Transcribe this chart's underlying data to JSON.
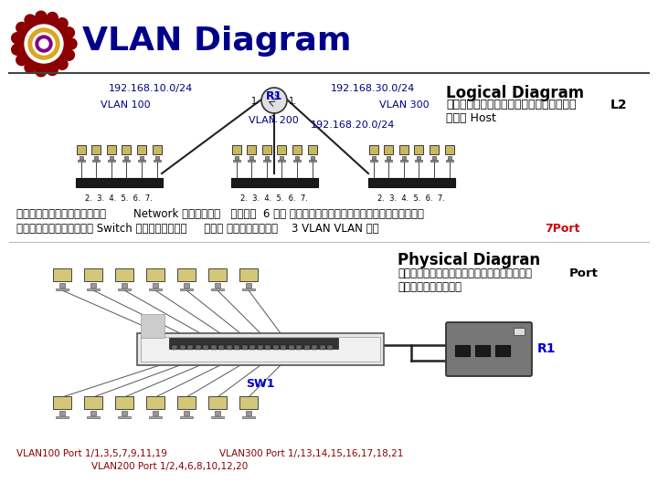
{
  "title": "VLAN Diagram",
  "title_color": "#00008B",
  "title_fontsize": 26,
  "bg_color": "#FFFFFF",
  "header_line_color": "#555555",
  "logical_title": "Logical Diagram",
  "logical_sub1": "แสดงรายละเอียดระดับ",
  "logical_L2": "L2",
  "logical_sub2": "และ Host",
  "r1_label": "R1",
  "ip_left": "192.168.10.0/24",
  "ip_right": "192.168.30.0/24",
  "ip_center": "192.168.20.0/24",
  "vlan100": "VLAN 100",
  "vlan200": "VLAN 200",
  "vlan300": "VLAN 300",
  "port_nums": "2.  3.  4.  5.  6.  7.",
  "desc_line1": "ถาผใช้งานแต่ละ        Network มนุษย์   เช่น  6 คน และอยู่บริเวณเดียวกัน",
  "desc_line2": "เราสามารถใช้ Switch ตัวเดียว     และ แบ่งเป็น    3 VLAN VLAN ละ  ",
  "desc_red": "7Port",
  "physical_title": "Physical Diagran",
  "physical_sub1": "แสดงการเชื่อมต่อแต่ละ",
  "physical_port": "Port",
  "physical_sub2": "ของอุปกรณ์",
  "sw1_label": "SW1",
  "r1_phys_label": "R1",
  "vlan100_ports": "VLAN100 Port 1/1,3,5,7,9,11,19",
  "vlan300_ports": "VLAN300 Port 1/,13,14,15,16,17,18,21",
  "vlan200_ports": "VLAN200 Port 1/2,4,6,8,10,12,20"
}
